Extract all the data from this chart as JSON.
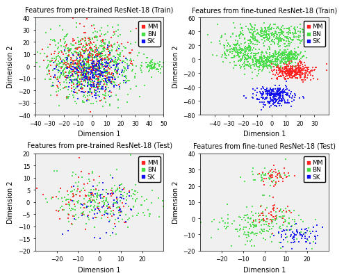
{
  "panels": [
    {
      "title": "Features from pre-trained ResNet-18 (Train)",
      "xlim": [
        -40,
        50
      ],
      "ylim": [
        -40,
        40
      ],
      "xticks": [
        -40,
        -30,
        -20,
        -10,
        0,
        10,
        20,
        30,
        40,
        50
      ],
      "yticks": [
        -40,
        -30,
        -20,
        -10,
        0,
        10,
        20,
        30,
        40
      ]
    },
    {
      "title": "Features from fine-tuned ResNet-18 (Train)",
      "xlim": [
        -50,
        40
      ],
      "ylim": [
        -80,
        60
      ],
      "xticks": [
        -40,
        -30,
        -20,
        -10,
        0,
        10,
        20,
        30
      ],
      "yticks": [
        -80,
        -60,
        -40,
        -20,
        0,
        20,
        40,
        60
      ]
    },
    {
      "title": "Features from pre-trained ResNet-18 (Test)",
      "xlim": [
        -30,
        30
      ],
      "ylim": [
        -20,
        20
      ],
      "xticks": [
        -20,
        -10,
        0,
        10,
        20
      ],
      "yticks": [
        -20,
        -15,
        -10,
        -5,
        0,
        5,
        10,
        15,
        20
      ]
    },
    {
      "title": "Features from fine-tuned ResNet-18 (Test)",
      "xlim": [
        -30,
        30
      ],
      "ylim": [
        -20,
        40
      ],
      "xticks": [
        -20,
        -10,
        0,
        10,
        20
      ],
      "yticks": [
        -20,
        -10,
        0,
        10,
        20,
        30,
        40
      ]
    }
  ],
  "legend_labels": [
    "MM",
    "BN",
    "SK"
  ],
  "legend_colors": [
    "#ff2020",
    "#44dd44",
    "#1010ee"
  ],
  "xlabel": "Dimension 1",
  "ylabel": "Dimension 2",
  "marker": "s",
  "marker_size": 3,
  "bg_color": "#ffffff",
  "axes_bg": "#f0f0f0",
  "title_fontsize": 7,
  "label_fontsize": 7,
  "tick_fontsize": 6,
  "legend_fontsize": 6.5
}
